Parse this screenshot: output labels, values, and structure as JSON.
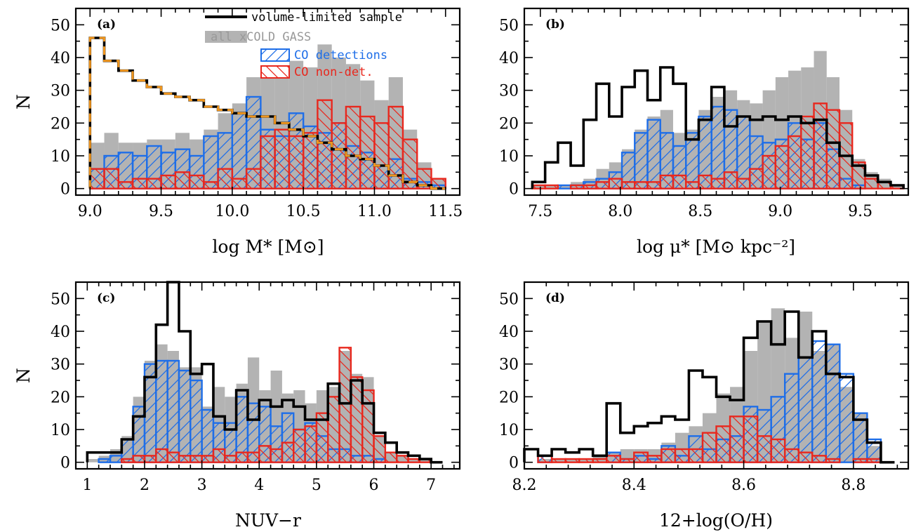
{
  "legend": {
    "volume": "volume-limited sample",
    "all": "all xCOLD GASS",
    "det": "CO detections",
    "nondet": "CO non-det."
  },
  "colors": {
    "volume": "#000000",
    "all": "#b3b3b3",
    "det": "#1e6ee8",
    "nondet": "#e8281e",
    "expected": "#f0961e"
  },
  "chart_data": [
    {
      "type": "bar",
      "panel_label": "(a)",
      "xlabel": "log M* [M⊙]",
      "ylabel": "N",
      "xlim": [
        8.9,
        11.6
      ],
      "ylim": [
        -2,
        55
      ],
      "xticks": [
        9.0,
        9.5,
        10.0,
        10.5,
        11.0,
        11.5
      ],
      "xtick_labels": [
        "9.0",
        "9.5",
        "10.0",
        "10.5",
        "11.0",
        "11.5"
      ],
      "yticks": [
        0,
        10,
        20,
        30,
        40,
        50
      ],
      "bin_edges": [
        9.0,
        9.1,
        9.2,
        9.3,
        9.4,
        9.5,
        9.6,
        9.7,
        9.8,
        9.9,
        10.0,
        10.1,
        10.2,
        10.3,
        10.4,
        10.5,
        10.6,
        10.7,
        10.8,
        10.9,
        11.0,
        11.1,
        11.2,
        11.3,
        11.4,
        11.5
      ],
      "series": [
        {
          "name": "all xCOLD GASS",
          "style": "filled",
          "values": [
            14,
            17,
            14,
            14,
            15,
            15,
            17,
            15,
            18,
            23,
            26,
            34,
            34,
            34,
            39,
            37,
            44,
            40,
            38,
            33,
            27,
            34,
            18,
            8,
            3
          ]
        },
        {
          "name": "CO detections",
          "style": "hatch",
          "values": [
            6,
            10,
            11,
            10,
            13,
            11,
            12,
            10,
            16,
            17,
            23,
            28,
            18,
            16,
            23,
            19,
            17,
            20,
            13,
            11,
            7,
            9,
            3,
            2,
            1
          ]
        },
        {
          "name": "CO non-det.",
          "style": "hatch",
          "values": [
            6,
            6,
            2,
            3,
            3,
            4,
            5,
            4,
            2,
            6,
            3,
            6,
            16,
            18,
            16,
            17,
            27,
            20,
            25,
            22,
            20,
            25,
            15,
            6,
            3
          ]
        },
        {
          "name": "volume-limited sample",
          "style": "step",
          "values": [
            46,
            39,
            36,
            33,
            31,
            29,
            28,
            27,
            25,
            24,
            23,
            22,
            22,
            20,
            18,
            16,
            14,
            12,
            10,
            9,
            7,
            4,
            2,
            1,
            0
          ]
        },
        {
          "style": "dashed",
          "values": [
            46,
            39,
            36,
            33,
            31,
            29,
            28,
            27,
            25,
            24,
            23,
            22,
            22,
            20,
            18,
            16,
            14,
            12,
            10,
            9,
            7,
            4,
            2,
            1,
            0
          ]
        }
      ]
    },
    {
      "type": "bar",
      "panel_label": "(b)",
      "xlabel": "log μ* [M⊙ kpc⁻²]",
      "ylabel": "",
      "xlim": [
        7.4,
        9.8
      ],
      "ylim": [
        -2,
        55
      ],
      "xticks": [
        7.5,
        8.0,
        8.5,
        9.0,
        9.5
      ],
      "xtick_labels": [
        "7.5",
        "8.0",
        "8.5",
        "9.0",
        "9.5"
      ],
      "yticks": [
        0,
        10,
        20,
        30,
        40,
        50
      ],
      "bin_edges": [
        7.45,
        7.53,
        7.61,
        7.69,
        7.77,
        7.85,
        7.93,
        8.01,
        8.09,
        8.17,
        8.25,
        8.33,
        8.41,
        8.49,
        8.57,
        8.65,
        8.73,
        8.81,
        8.89,
        8.97,
        9.05,
        9.13,
        9.21,
        9.29,
        9.37,
        9.45,
        9.53,
        9.61,
        9.69,
        9.77
      ],
      "series": [
        {
          "name": "all xCOLD GASS",
          "style": "filled",
          "values": [
            1,
            1,
            1,
            2,
            3,
            6,
            8,
            12,
            18,
            22,
            24,
            17,
            18,
            24,
            28,
            30,
            27,
            26,
            30,
            34,
            36,
            37,
            42,
            34,
            24,
            9,
            5,
            3,
            1
          ]
        },
        {
          "name": "CO detections",
          "style": "hatch",
          "values": [
            0,
            0,
            1,
            1,
            2,
            3,
            5,
            11,
            17,
            21,
            17,
            13,
            17,
            22,
            25,
            24,
            22,
            16,
            14,
            15,
            20,
            15,
            20,
            12,
            3,
            1,
            0,
            0,
            0
          ]
        },
        {
          "name": "CO non-det.",
          "style": "hatch",
          "values": [
            1,
            1,
            0,
            1,
            1,
            2,
            3,
            2,
            2,
            2,
            4,
            4,
            2,
            4,
            3,
            5,
            3,
            6,
            10,
            13,
            16,
            22,
            26,
            24,
            20,
            8,
            3,
            2,
            1
          ]
        },
        {
          "name": "volume-limited sample",
          "style": "step",
          "values": [
            2,
            8,
            14,
            7,
            21,
            32,
            22,
            31,
            36,
            27,
            37,
            32,
            15,
            21,
            31,
            19,
            22,
            21,
            22,
            21,
            22,
            20,
            21,
            14,
            10,
            7,
            4,
            2,
            1
          ]
        }
      ]
    },
    {
      "type": "bar",
      "panel_label": "(c)",
      "xlabel": "NUV−r",
      "ylabel": "N",
      "xlim": [
        0.8,
        7.5
      ],
      "ylim": [
        -2,
        55
      ],
      "xticks": [
        1,
        2,
        3,
        4,
        5,
        6,
        7
      ],
      "xtick_labels": [
        "1",
        "2",
        "3",
        "4",
        "5",
        "6",
        "7"
      ],
      "yticks": [
        0,
        10,
        20,
        30,
        40,
        50
      ],
      "bin_edges": [
        1.0,
        1.2,
        1.4,
        1.6,
        1.8,
        2.0,
        2.2,
        2.4,
        2.6,
        2.8,
        3.0,
        3.2,
        3.4,
        3.6,
        3.8,
        4.0,
        4.2,
        4.4,
        4.6,
        4.8,
        5.0,
        5.2,
        5.4,
        5.6,
        5.8,
        6.0,
        6.2,
        6.4,
        6.6,
        6.8,
        7.0,
        7.2
      ],
      "series": [
        {
          "name": "all xCOLD GASS",
          "style": "filled",
          "values": [
            1,
            2,
            4,
            8,
            20,
            31,
            36,
            34,
            29,
            29,
            17,
            23,
            20,
            24,
            32,
            22,
            28,
            21,
            22,
            18,
            22,
            23,
            34,
            27,
            26,
            8,
            3,
            2,
            1,
            1,
            0
          ]
        },
        {
          "name": "CO detections",
          "style": "hatch",
          "values": [
            0,
            1,
            2,
            7,
            17,
            30,
            31,
            31,
            28,
            25,
            16,
            12,
            12,
            20,
            18,
            17,
            11,
            15,
            10,
            12,
            8,
            4,
            4,
            2,
            2,
            1,
            0,
            0,
            0,
            0,
            0
          ]
        },
        {
          "name": "CO non-det.",
          "style": "hatch",
          "values": [
            0,
            0,
            0,
            1,
            2,
            2,
            4,
            3,
            2,
            2,
            2,
            4,
            2,
            3,
            3,
            5,
            4,
            6,
            10,
            11,
            15,
            20,
            35,
            26,
            22,
            8,
            3,
            2,
            1,
            1,
            0
          ]
        },
        {
          "name": "volume-limited sample",
          "style": "step",
          "values": [
            3,
            3,
            3,
            7,
            14,
            26,
            42,
            55,
            40,
            27,
            30,
            14,
            10,
            22,
            13,
            19,
            17,
            19,
            17,
            13,
            13,
            24,
            18,
            25,
            18,
            9,
            6,
            3,
            2,
            1,
            0
          ]
        }
      ]
    },
    {
      "type": "bar",
      "panel_label": "(d)",
      "xlabel": "12+log(O/H)",
      "ylabel": "",
      "xlim": [
        8.2,
        8.9
      ],
      "ylim": [
        -2,
        55
      ],
      "xticks": [
        8.2,
        8.4,
        8.6,
        8.8
      ],
      "xtick_labels": [
        "8.2",
        "8.4",
        "8.6",
        "8.8"
      ],
      "yticks": [
        0,
        10,
        20,
        30,
        40,
        50
      ],
      "bin_edges": [
        8.2,
        8.225,
        8.25,
        8.275,
        8.3,
        8.325,
        8.35,
        8.375,
        8.4,
        8.425,
        8.45,
        8.475,
        8.5,
        8.525,
        8.55,
        8.575,
        8.6,
        8.625,
        8.65,
        8.675,
        8.7,
        8.725,
        8.75,
        8.775,
        8.8,
        8.825,
        8.85,
        8.875
      ],
      "series": [
        {
          "name": "all xCOLD GASS",
          "style": "filled",
          "values": [
            0,
            1,
            1,
            1,
            1,
            2,
            3,
            4,
            4,
            4,
            6,
            9,
            11,
            15,
            21,
            23,
            34,
            43,
            47,
            38,
            46,
            34,
            36,
            23,
            15,
            5,
            0
          ]
        },
        {
          "name": "CO detections",
          "style": "hatch",
          "values": [
            0,
            2,
            0,
            0,
            0,
            0,
            3,
            1,
            2,
            1,
            5,
            2,
            8,
            4,
            7,
            8,
            17,
            16,
            20,
            27,
            32,
            37,
            36,
            27,
            15,
            7,
            0
          ]
        },
        {
          "name": "CO non-det.",
          "style": "hatch",
          "values": [
            0,
            2,
            1,
            1,
            1,
            1,
            2,
            1,
            3,
            2,
            4,
            4,
            4,
            9,
            11,
            14,
            14,
            8,
            7,
            4,
            3,
            2,
            1,
            0,
            1,
            1,
            0
          ]
        },
        {
          "name": "volume-limited sample",
          "style": "step",
          "values": [
            4,
            2,
            4,
            3,
            4,
            2,
            18,
            9,
            11,
            12,
            14,
            13,
            28,
            26,
            20,
            19,
            38,
            43,
            36,
            46,
            32,
            40,
            27,
            26,
            13,
            6,
            0
          ]
        }
      ]
    }
  ]
}
